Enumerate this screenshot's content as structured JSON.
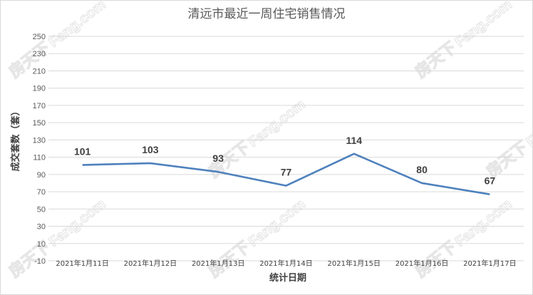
{
  "watermark": {
    "cn": "房天下",
    "en": "Fang.com"
  },
  "chart_data": {
    "type": "line",
    "title": "清远市最近一周住宅销售情况",
    "xlabel": "统计日期",
    "ylabel": "成交套数（套）",
    "ylim": [
      -10,
      250
    ],
    "yticks": [
      -10,
      10,
      30,
      50,
      70,
      90,
      110,
      130,
      150,
      170,
      190,
      210,
      230,
      250
    ],
    "grid": true,
    "legend": "none",
    "color": "#4f81bd",
    "categories": [
      "2021年1月11日",
      "2021年1月12日",
      "2021年1月13日",
      "2021年1月14日",
      "2021年1月15日",
      "2021年1月16日",
      "2021年1月17日"
    ],
    "values": [
      101,
      103,
      93,
      77,
      114,
      80,
      67
    ]
  }
}
